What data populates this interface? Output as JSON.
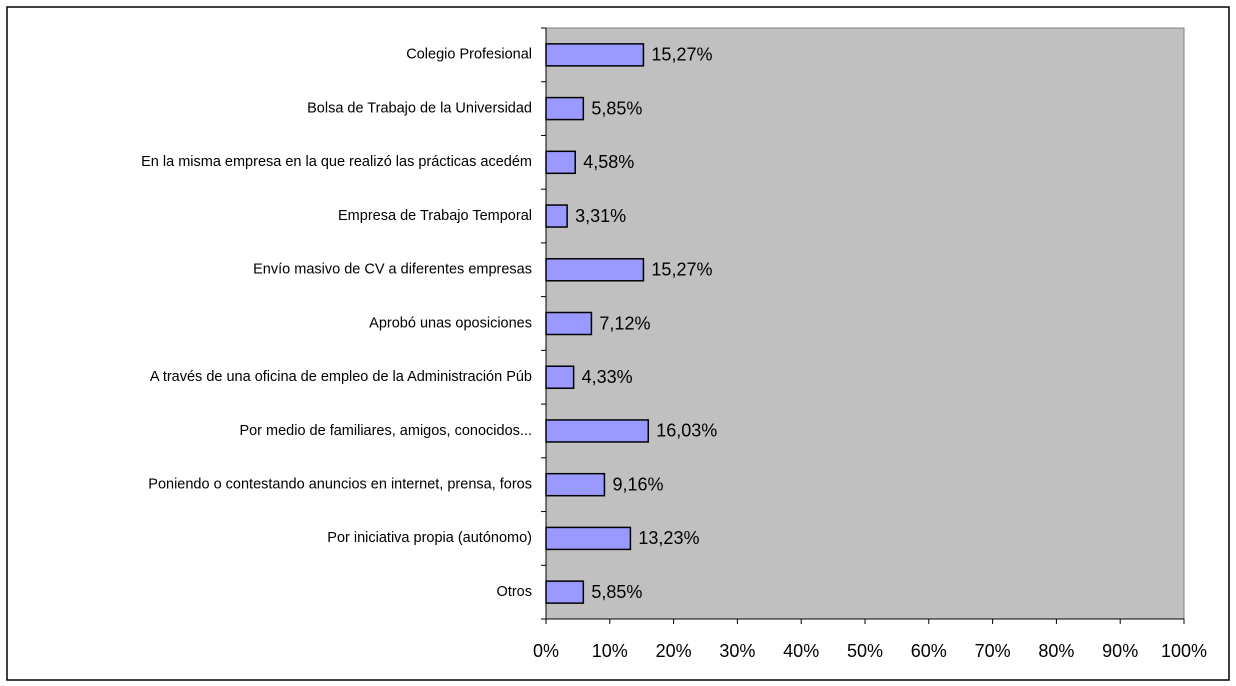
{
  "chart_data": {
    "type": "barh",
    "categories": [
      "Colegio Profesional",
      "Bolsa de Trabajo de la Universidad",
      "En la misma empresa en la que realizó las prácticas acedém",
      "Empresa de Trabajo Temporal",
      "Envío masivo de CV a diferentes empresas",
      "Aprobó unas oposiciones",
      "A través de una oficina de empleo de la Administración Púb",
      "Por medio de familiares, amigos, conocidos...",
      "Poniendo o contestando anuncios en internet, prensa, foros",
      "Por iniciativa propia (autónomo)",
      "Otros"
    ],
    "values": [
      15.27,
      5.85,
      4.58,
      3.31,
      15.27,
      7.12,
      4.33,
      16.03,
      9.16,
      13.23,
      5.85
    ],
    "value_labels": [
      "15,27%",
      "5,85%",
      "4,58%",
      "3,31%",
      "15,27%",
      "7,12%",
      "4,33%",
      "16,03%",
      "9,16%",
      "13,23%",
      "5,85%"
    ],
    "color": "#9999ff",
    "plot_background": "#c0c0c0",
    "xlim": [
      0,
      100
    ],
    "xticks": [
      {
        "value": 0,
        "label": "0%"
      },
      {
        "value": 10,
        "label": "10%"
      },
      {
        "value": 20,
        "label": "20%"
      },
      {
        "value": 30,
        "label": "30%"
      },
      {
        "value": 40,
        "label": "40%"
      },
      {
        "value": 50,
        "label": "50%"
      },
      {
        "value": 60,
        "label": "60%"
      },
      {
        "value": 70,
        "label": "70%"
      },
      {
        "value": 80,
        "label": "80%"
      },
      {
        "value": 90,
        "label": "90%"
      },
      {
        "value": 100,
        "label": "100%"
      }
    ],
    "grid": false
  }
}
